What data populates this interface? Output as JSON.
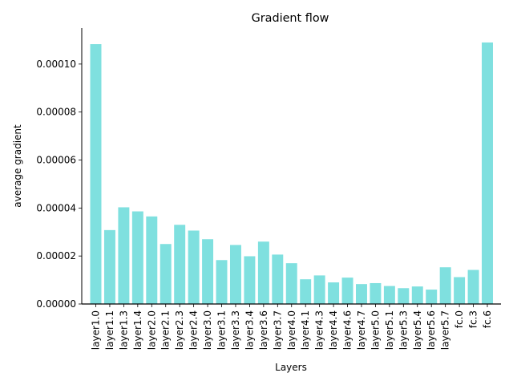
{
  "chart_data": {
    "type": "bar",
    "title": "Gradient flow",
    "xlabel": "Layers",
    "ylabel": "average gradient",
    "ylim": [
      0,
      0.000115
    ],
    "yticks": [
      "0.00000",
      "0.00002",
      "0.00004",
      "0.00006",
      "0.00008",
      "0.00010"
    ],
    "ytick_values": [
      0,
      2e-05,
      4e-05,
      6e-05,
      8e-05,
      0.0001
    ],
    "bar_color": "#7fe0df",
    "grid": false,
    "categories": [
      "layer1.0",
      "layer1.1",
      "layer1.3",
      "layer1.4",
      "layer2.0",
      "layer2.1",
      "layer2.3",
      "layer2.4",
      "layer3.0",
      "layer3.1",
      "layer3.3",
      "layer3.4",
      "layer3.6",
      "layer3.7",
      "layer4.0",
      "layer4.1",
      "layer4.3",
      "layer4.4",
      "layer4.6",
      "layer4.7",
      "layer5.0",
      "layer5.1",
      "layer5.3",
      "layer5.4",
      "layer5.6",
      "layer5.7",
      "fc.0",
      "fc.3",
      "fc.6"
    ],
    "tick_labels_shown": [
      "layer1.0",
      "layer1.1",
      "layer1.3",
      "layer1.4",
      "layer2.0",
      "layer2.1",
      "layer2.3",
      "layer2.4",
      "layer3.0",
      "layer3.1",
      "layer3.3",
      "layer3.4",
      "layer3.6",
      "layer3.7",
      "layer4.0",
      "layer4.1",
      "layer4.3",
      "layer4.4",
      "layer4.6",
      "layer4.7",
      "layer5.0",
      "layer5.1",
      "layer5.3",
      "layer5.4",
      "layer5.6",
      "layer5.7",
      "fc.0",
      "fc.3",
      "fc.6"
    ],
    "values": [
      0.0001083,
      3.08e-05,
      4.03e-05,
      3.86e-05,
      3.65e-05,
      2.5e-05,
      3.3e-05,
      3.06e-05,
      2.7e-05,
      1.83e-05,
      2.46e-05,
      1.99e-05,
      2.6e-05,
      2.06e-05,
      1.7e-05,
      1.03e-05,
      1.19e-05,
      9e-06,
      1.1e-05,
      8.3e-06,
      8.7e-06,
      7.5e-06,
      6.6e-06,
      7.3e-06,
      6e-06,
      1.53e-05,
      1.12e-05,
      1.42e-05,
      0.000109
    ]
  }
}
